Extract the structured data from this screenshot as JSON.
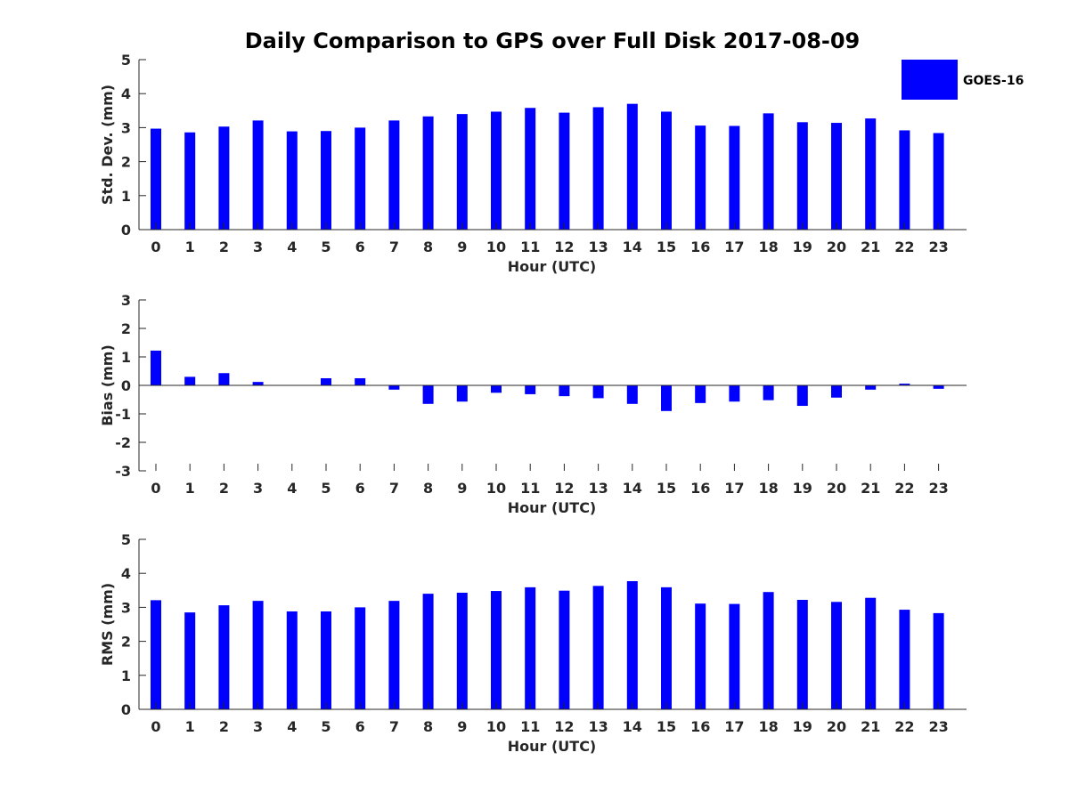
{
  "figure": {
    "title": "Daily Comparison to GPS over Full Disk 2017-08-09"
  },
  "legend": {
    "label": "GOES-16",
    "color": "#0000ff"
  },
  "colors": {
    "bar": "#0000ff",
    "axis": "#262626"
  },
  "chart_data": [
    {
      "type": "bar",
      "id": "stddev",
      "series_name": "GOES-16",
      "categories": [
        "0",
        "1",
        "2",
        "3",
        "4",
        "5",
        "6",
        "7",
        "8",
        "9",
        "10",
        "11",
        "12",
        "13",
        "14",
        "15",
        "16",
        "17",
        "18",
        "19",
        "20",
        "21",
        "22",
        "23"
      ],
      "values": [
        2.97,
        2.86,
        3.03,
        3.21,
        2.89,
        2.9,
        3.0,
        3.21,
        3.33,
        3.4,
        3.47,
        3.58,
        3.44,
        3.6,
        3.7,
        3.47,
        3.06,
        3.05,
        3.42,
        3.16,
        3.14,
        3.27,
        2.92,
        2.84
      ],
      "xlabel": "Hour (UTC)",
      "ylabel": "Std. Dev. (mm)",
      "ylim": [
        0,
        5
      ],
      "yticks": [
        "0",
        "1",
        "2",
        "3",
        "4",
        "5"
      ]
    },
    {
      "type": "bar",
      "id": "bias",
      "series_name": "GOES-16",
      "categories": [
        "0",
        "1",
        "2",
        "3",
        "4",
        "5",
        "6",
        "7",
        "8",
        "9",
        "10",
        "11",
        "12",
        "13",
        "14",
        "15",
        "16",
        "17",
        "18",
        "19",
        "20",
        "21",
        "22",
        "23"
      ],
      "values": [
        1.22,
        0.3,
        0.43,
        0.12,
        0.0,
        0.25,
        0.25,
        -0.15,
        -0.65,
        -0.57,
        -0.26,
        -0.31,
        -0.38,
        -0.45,
        -0.65,
        -0.9,
        -0.62,
        -0.57,
        -0.52,
        -0.72,
        -0.43,
        -0.15,
        0.06,
        -0.12
      ],
      "xlabel": "Hour (UTC)",
      "ylabel": "Bias (mm)",
      "ylim": [
        -3,
        3
      ],
      "yticks": [
        "-3",
        "-2",
        "-1",
        "0",
        "1",
        "2",
        "3"
      ]
    },
    {
      "type": "bar",
      "id": "rms",
      "series_name": "GOES-16",
      "categories": [
        "0",
        "1",
        "2",
        "3",
        "4",
        "5",
        "6",
        "7",
        "8",
        "9",
        "10",
        "11",
        "12",
        "13",
        "14",
        "15",
        "16",
        "17",
        "18",
        "19",
        "20",
        "21",
        "22",
        "23"
      ],
      "values": [
        3.21,
        2.85,
        3.06,
        3.19,
        2.88,
        2.88,
        3.0,
        3.19,
        3.4,
        3.43,
        3.48,
        3.59,
        3.49,
        3.63,
        3.77,
        3.59,
        3.11,
        3.1,
        3.45,
        3.22,
        3.16,
        3.28,
        2.93,
        2.83
      ],
      "xlabel": "Hour (UTC)",
      "ylabel": "RMS (mm)",
      "ylim": [
        0,
        5
      ],
      "yticks": [
        "0",
        "1",
        "2",
        "3",
        "4",
        "5"
      ]
    }
  ]
}
